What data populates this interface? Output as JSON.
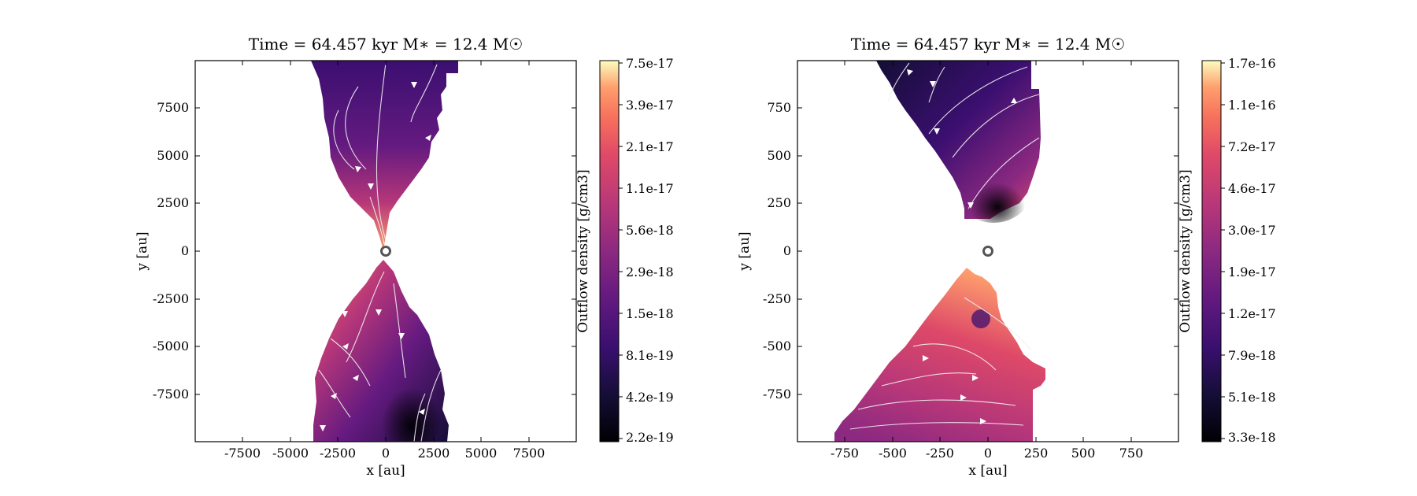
{
  "panels": [
    {
      "title": "Time = 64.457 kyr    M∗ = 12.4 M☉",
      "xlabel": "x [au]",
      "ylabel": "y [au]",
      "colorbar_label": "Outflow density [g/cm3]",
      "colorbar_ticks": [
        "7.5e-17",
        "3.9e-17",
        "2.1e-17",
        "1.1e-17",
        "5.6e-18",
        "2.9e-18",
        "1.5e-18",
        "8.1e-19",
        "4.2e-19",
        "2.2e-19"
      ],
      "xticks": [
        "-7500",
        "-5000",
        "-2500",
        "0",
        "2500",
        "5000",
        "7500"
      ],
      "yticks": [
        "7500",
        "5000",
        "2500",
        "0",
        "-2500",
        "-5000",
        "-7500"
      ]
    },
    {
      "title": "Time = 64.457 kyr    M∗ = 12.4 M☉",
      "xlabel": "x [au]",
      "ylabel": "y [au]",
      "colorbar_label": "Outflow density [g/cm3]",
      "colorbar_ticks": [
        "1.7e-16",
        "1.1e-16",
        "7.2e-17",
        "4.6e-17",
        "3.0e-17",
        "1.9e-17",
        "1.2e-17",
        "7.9e-18",
        "5.1e-18",
        "3.3e-18"
      ],
      "xticks": [
        "-750",
        "-500",
        "-250",
        "0",
        "250",
        "500",
        "750"
      ],
      "yticks": [
        "750",
        "500",
        "250",
        "0",
        "-250",
        "-500",
        "-750"
      ]
    }
  ],
  "chart_data": [
    {
      "type": "heatmap",
      "title": "Time = 64.457 kyr    M∗ = 12.4 M☉",
      "xlabel": "x [au]",
      "ylabel": "y [au]",
      "xlim": [
        -10000,
        10000
      ],
      "ylim": [
        -10000,
        10000
      ],
      "x_ticks": [
        -7500,
        -5000,
        -2500,
        0,
        2500,
        5000,
        7500
      ],
      "y_ticks": [
        7500,
        5000,
        2500,
        0,
        -2500,
        -5000,
        -7500
      ],
      "colorbar": {
        "label": "Outflow density [g/cm3]",
        "scale": "log",
        "range": [
          2.2e-19,
          7.5e-17
        ],
        "colormap": "magma"
      },
      "overlays": [
        "streamlines",
        "central-source-marker"
      ]
    },
    {
      "type": "heatmap",
      "title": "Time = 64.457 kyr    M∗ = 12.4 M☉",
      "xlabel": "x [au]",
      "ylabel": "y [au]",
      "xlim": [
        -1000,
        1000
      ],
      "ylim": [
        -1000,
        1000
      ],
      "x_ticks": [
        -750,
        -500,
        -250,
        0,
        250,
        500,
        750
      ],
      "y_ticks": [
        750,
        500,
        250,
        0,
        -250,
        -500,
        -750
      ],
      "colorbar": {
        "label": "Outflow density [g/cm3]",
        "scale": "log",
        "range": [
          3.3e-18,
          1.7e-16
        ],
        "colormap": "magma"
      },
      "overlays": [
        "streamlines",
        "central-source-marker"
      ]
    }
  ]
}
